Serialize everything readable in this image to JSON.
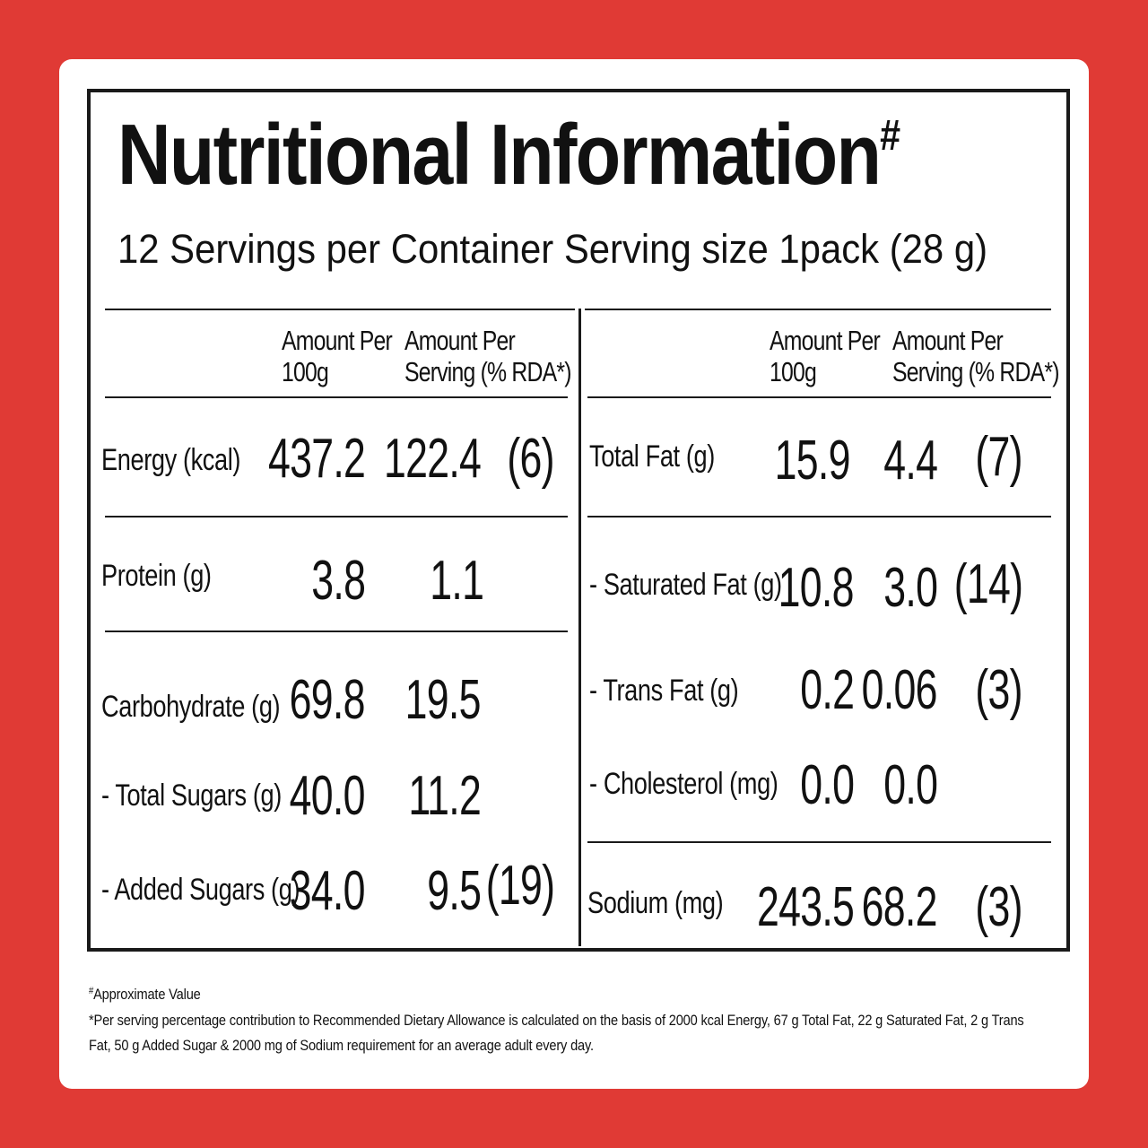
{
  "title": "Nutritional Information",
  "title_mark": "#",
  "subtitle": "12 Servings per Container Serving size 1pack (28 g)",
  "headers": {
    "per100_line1": "Amount Per",
    "per100_line2": "100g",
    "perServing_line1": "Amount Per",
    "perServing_line2": "Serving (% RDA*)"
  },
  "left": {
    "energy": {
      "label": "Energy (kcal)",
      "per100": "437.2",
      "perServing": "122.4",
      "rda": "(6)"
    },
    "protein": {
      "label": "Protein (g)",
      "per100": "3.8",
      "perServing": "1.1"
    },
    "carbohydrate": {
      "label": "Carbohydrate (g)",
      "per100": "69.8",
      "perServing": "19.5"
    },
    "total_sugars": {
      "label": "- Total Sugars (g)",
      "per100": "40.0",
      "perServing": "11.2"
    },
    "added_sugars": {
      "label": "- Added Sugars (g)",
      "per100": "34.0",
      "perServing": "9.5",
      "rda": "(19)"
    }
  },
  "right": {
    "total_fat": {
      "label": "Total Fat (g)",
      "per100": "15.9",
      "perServing": "4.4",
      "rda": "(7)"
    },
    "saturated_fat": {
      "label": "- Saturated Fat (g)",
      "per100": "10.8",
      "perServing": "3.0",
      "rda": "(14)"
    },
    "trans_fat": {
      "label": "- Trans Fat (g)",
      "per100": "0.2",
      "perServing": "0.06",
      "rda": "(3)"
    },
    "cholesterol": {
      "label": "- Cholesterol (mg)",
      "per100": "0.0",
      "perServing": "0.0"
    },
    "sodium": {
      "label": "Sodium (mg)",
      "per100": "243.5",
      "perServing": "68.2",
      "rda": "(3)"
    }
  },
  "footnotes": {
    "approx_mark": "#",
    "approx": "Approximate Value",
    "rda_line1": "*Per serving percentage contribution to Recommended Dietary Allowance is calculated on the basis of 2000 kcal Energy, 67 g Total Fat, 22 g Saturated Fat, 2 g Trans",
    "rda_line2": "Fat, 50 g Added Sugar & 2000 mg of Sodium requirement for an average adult every day."
  },
  "colors": {
    "background": "#e03a35",
    "card": "#ffffff",
    "ink": "#111111"
  }
}
